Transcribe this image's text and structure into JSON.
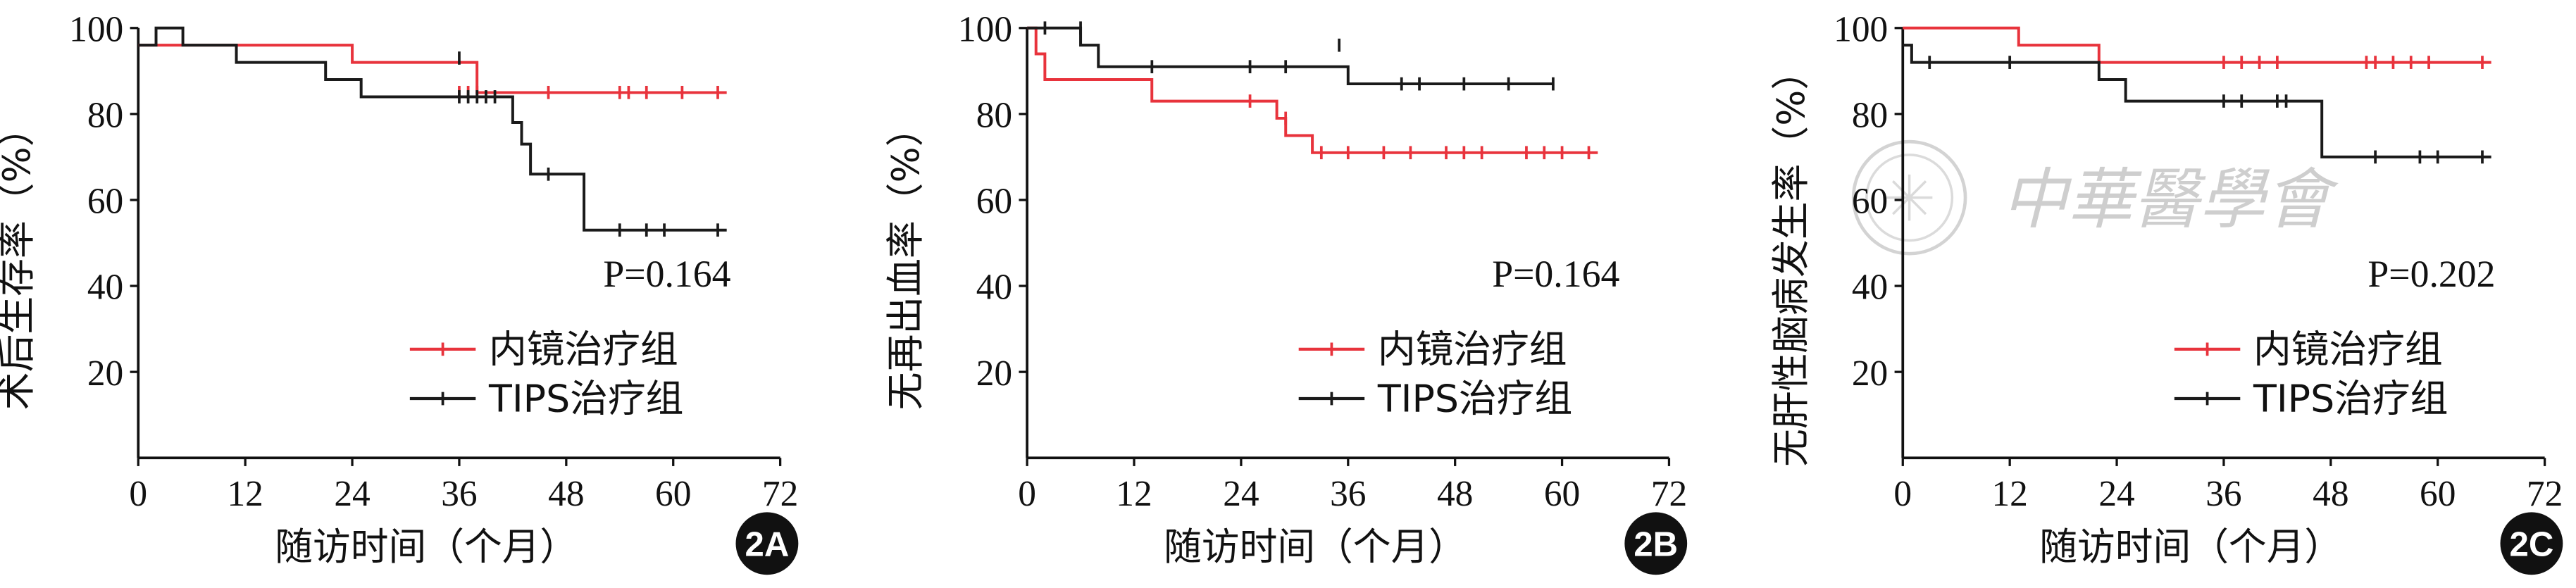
{
  "chart_data": [
    {
      "type": "line",
      "subtype": "kaplan-meier",
      "panel_label": "2A",
      "ylabel": "术后生存率（%）",
      "xlabel": "随访时间（个月）",
      "xlim": [
        0,
        72
      ],
      "ylim": [
        0,
        100
      ],
      "xticks": [
        0,
        12,
        24,
        36,
        48,
        60,
        72
      ],
      "yticks": [
        20,
        40,
        60,
        80,
        100
      ],
      "p_value_text": "P=0.164",
      "series": [
        {
          "name": "内镜治疗组",
          "color": "#e8333c",
          "x": [
            0,
            24,
            24,
            38,
            38,
            66
          ],
          "y": [
            96,
            96,
            92,
            92,
            85,
            85
          ],
          "censored": [
            [
              36,
              85
            ],
            [
              37,
              85
            ],
            [
              38,
              85
            ],
            [
              46,
              85
            ],
            [
              54,
              85
            ],
            [
              55,
              85
            ],
            [
              57,
              85
            ],
            [
              61,
              85
            ],
            [
              65,
              85
            ]
          ]
        },
        {
          "name": "TIPS治疗组",
          "color": "#1a1a1a",
          "x": [
            0,
            2,
            2,
            5,
            5,
            11,
            11,
            21,
            21,
            25,
            25,
            42,
            42,
            43,
            43,
            44,
            44,
            50,
            50,
            66
          ],
          "y": [
            96,
            96,
            100,
            100,
            96,
            96,
            92,
            92,
            88,
            88,
            84,
            84,
            78,
            78,
            73,
            73,
            66,
            66,
            53,
            53
          ],
          "censored": [
            [
              36,
              93
            ],
            [
              36,
              84
            ],
            [
              37,
              84
            ],
            [
              38,
              84
            ],
            [
              39,
              84
            ],
            [
              40,
              84
            ],
            [
              46,
              66
            ],
            [
              54,
              53
            ],
            [
              57,
              53
            ],
            [
              59,
              53
            ],
            [
              65,
              53
            ]
          ]
        }
      ]
    },
    {
      "type": "line",
      "subtype": "kaplan-meier",
      "panel_label": "2B",
      "ylabel": "无再出血率（%）",
      "xlabel": "随访时间（个月）",
      "xlim": [
        0,
        72
      ],
      "ylim": [
        0,
        100
      ],
      "xticks": [
        0,
        12,
        24,
        36,
        48,
        60,
        72
      ],
      "yticks": [
        20,
        40,
        60,
        80,
        100
      ],
      "p_value_text": "P=0.164",
      "series": [
        {
          "name": "内镜治疗组",
          "color": "#e8333c",
          "x": [
            0,
            1,
            1,
            2,
            2,
            14,
            14,
            28,
            28,
            29,
            29,
            32,
            32,
            64
          ],
          "y": [
            100,
            100,
            94,
            94,
            88,
            88,
            83,
            83,
            79,
            79,
            75,
            75,
            71,
            71
          ],
          "censored": [
            [
              25,
              83
            ],
            [
              29,
              79
            ],
            [
              33,
              71
            ],
            [
              36,
              71
            ],
            [
              40,
              71
            ],
            [
              43,
              71
            ],
            [
              47,
              71
            ],
            [
              49,
              71
            ],
            [
              51,
              71
            ],
            [
              56,
              71
            ],
            [
              58,
              71
            ],
            [
              60,
              71
            ],
            [
              63,
              71
            ]
          ]
        },
        {
          "name": "TIPS治疗组",
          "color": "#1a1a1a",
          "x": [
            0,
            6,
            6,
            8,
            8,
            36,
            36,
            59
          ],
          "y": [
            100,
            100,
            96,
            96,
            91,
            91,
            87,
            87
          ],
          "censored": [
            [
              2,
              100
            ],
            [
              6,
              100
            ],
            [
              14,
              91
            ],
            [
              25,
              91
            ],
            [
              29,
              91
            ],
            [
              35,
              96
            ],
            [
              42,
              87
            ],
            [
              44,
              87
            ],
            [
              49,
              87
            ],
            [
              54,
              87
            ],
            [
              59,
              87
            ]
          ]
        }
      ]
    },
    {
      "type": "line",
      "subtype": "kaplan-meier",
      "panel_label": "2C",
      "ylabel": "无肝性脑病发生率（%）",
      "xlabel": "随访时间（个月）",
      "xlim": [
        0,
        72
      ],
      "ylim": [
        0,
        100
      ],
      "xticks": [
        0,
        12,
        24,
        36,
        48,
        60,
        72
      ],
      "yticks": [
        20,
        40,
        60,
        80,
        100
      ],
      "p_value_text": "P=0.202",
      "series": [
        {
          "name": "内镜治疗组",
          "color": "#e8333c",
          "x": [
            0,
            13,
            13,
            22,
            22,
            66
          ],
          "y": [
            100,
            100,
            96,
            96,
            92,
            92
          ],
          "censored": [
            [
              36,
              92
            ],
            [
              38,
              92
            ],
            [
              40,
              92
            ],
            [
              42,
              92
            ],
            [
              52,
              92
            ],
            [
              53,
              92
            ],
            [
              55,
              92
            ],
            [
              57,
              92
            ],
            [
              59,
              92
            ],
            [
              65,
              92
            ]
          ]
        },
        {
          "name": "TIPS治疗组",
          "color": "#1a1a1a",
          "x": [
            0,
            1,
            1,
            22,
            22,
            25,
            25,
            47,
            47,
            66
          ],
          "y": [
            96,
            96,
            92,
            92,
            88,
            88,
            83,
            83,
            70,
            70
          ],
          "censored": [
            [
              3,
              92
            ],
            [
              12,
              92
            ],
            [
              36,
              83
            ],
            [
              38,
              83
            ],
            [
              42,
              83
            ],
            [
              43,
              83
            ],
            [
              53,
              70
            ],
            [
              58,
              70
            ],
            [
              60,
              70
            ],
            [
              65,
              70
            ]
          ]
        }
      ]
    }
  ],
  "watermark": {
    "text": "中華醫學會"
  }
}
